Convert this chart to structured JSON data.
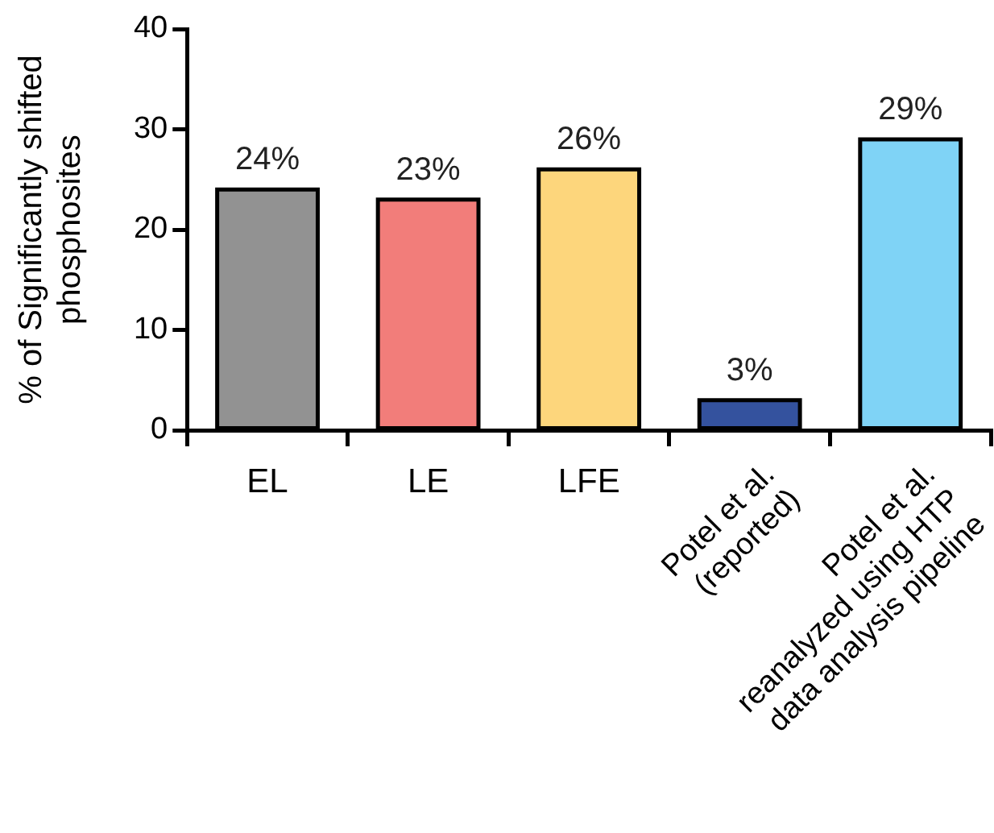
{
  "chart_data": {
    "type": "bar",
    "ylabel": "% of Significantly shifted\nphosphosites",
    "categories": [
      "EL",
      "LE",
      "LFE",
      "Potel et al.\n(reported)",
      "Potel et al.\nreanalyzed using HTP\ndata analysis pipeline"
    ],
    "values": [
      24,
      23,
      26,
      3,
      29
    ],
    "colors": [
      "#929292",
      "#f27d7a",
      "#fdd67c",
      "#34529e",
      "#7fd3f6"
    ],
    "value_labels": [
      "24%",
      "23%",
      "26%",
      "3%",
      "29%"
    ],
    "ylim": [
      0,
      40
    ],
    "yticks": [
      0,
      10,
      20,
      30,
      40
    ],
    "grid": false,
    "legend": false
  }
}
